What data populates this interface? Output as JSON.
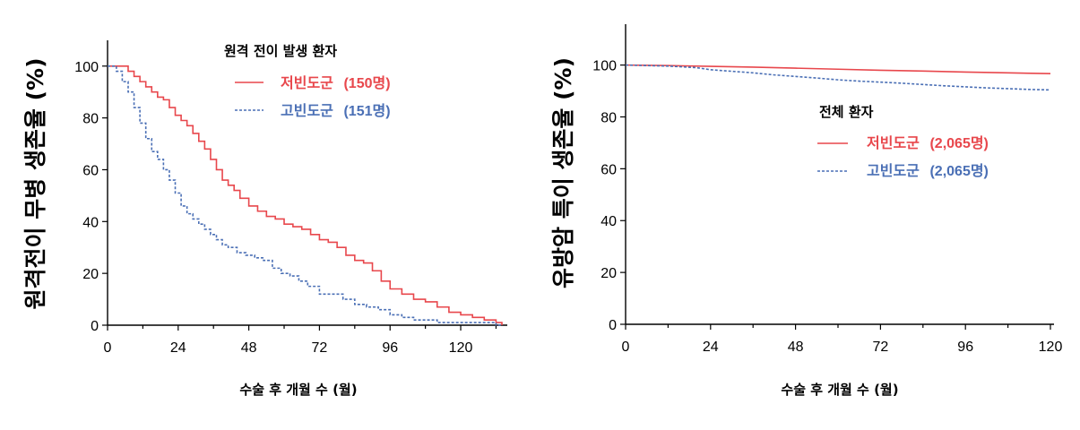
{
  "colors": {
    "low": "#e8474c",
    "high": "#4a6fb5"
  },
  "chart_data": [
    {
      "type": "line",
      "xlabel": "수술 후 개월 수 (월)",
      "ylabel": "원격전이 무병 생존율 (%)",
      "xlim": [
        0,
        138
      ],
      "ylim": [
        0,
        105
      ],
      "xticks": [
        "0",
        "24",
        "48",
        "72",
        "96",
        "120"
      ],
      "yticks": [
        "0",
        "20",
        "40",
        "60",
        "80",
        "100"
      ],
      "legend_title": "원격 전이 발생 환자",
      "legend_position": "top-right",
      "series": [
        {
          "name": "저빈도군",
          "count_label": "(150명)",
          "style": "solid",
          "color_key": "low",
          "x": [
            0,
            4,
            7,
            9,
            11,
            13,
            15,
            17,
            19,
            21,
            23,
            25,
            27,
            29,
            31,
            33,
            35,
            37,
            39,
            41,
            43,
            45,
            48,
            51,
            54,
            57,
            60,
            63,
            66,
            69,
            72,
            75,
            78,
            81,
            84,
            87,
            90,
            93,
            96,
            100,
            104,
            108,
            112,
            116,
            120,
            124,
            128,
            132,
            134
          ],
          "y": [
            100,
            100,
            98,
            96,
            94,
            92,
            90,
            88,
            87,
            84,
            81,
            79,
            77,
            74,
            71,
            68,
            64,
            60,
            56,
            54,
            52,
            49,
            46,
            44,
            42,
            41,
            39,
            38,
            37,
            35,
            33,
            32,
            30,
            27,
            25,
            24,
            21,
            17,
            14,
            12,
            10,
            9,
            7,
            5,
            4,
            3,
            2,
            1,
            0
          ]
        },
        {
          "name": "고빈도군",
          "count_label": "(151명)",
          "style": "dashed",
          "color_key": "high",
          "x": [
            0,
            3,
            5,
            7,
            9,
            11,
            13,
            15,
            17,
            19,
            21,
            23,
            25,
            27,
            29,
            31,
            33,
            35,
            37,
            39,
            41,
            44,
            47,
            50,
            53,
            56,
            59,
            62,
            65,
            68,
            72,
            76,
            80,
            84,
            88,
            92,
            96,
            100,
            104,
            108,
            112,
            116,
            120,
            124,
            128,
            132,
            134
          ],
          "y": [
            100,
            98,
            94,
            90,
            84,
            78,
            72,
            67,
            64,
            60,
            56,
            51,
            46,
            43,
            41,
            39,
            37,
            35,
            33,
            31,
            30,
            28,
            27,
            26,
            25,
            22,
            20,
            19,
            17,
            15,
            12,
            12,
            10,
            8,
            7,
            6,
            4,
            3,
            2,
            2,
            1,
            1,
            1,
            1,
            1,
            0,
            0
          ]
        }
      ]
    },
    {
      "type": "line",
      "xlabel": "수술 후 개월 수 (월)",
      "ylabel": "유방암 특이 생존율 (%)",
      "xlim": [
        0,
        121
      ],
      "ylim": [
        0,
        105
      ],
      "xticks": [
        "0",
        "24",
        "48",
        "72",
        "96",
        "120"
      ],
      "yticks": [
        "0",
        "20",
        "40",
        "60",
        "80",
        "100"
      ],
      "legend_title": "전체 환자",
      "legend_position": "center-right",
      "series": [
        {
          "name": "저빈도군",
          "count_label": "(2,065명)",
          "style": "solid",
          "color_key": "low",
          "x": [
            0,
            12,
            24,
            36,
            48,
            60,
            72,
            84,
            96,
            108,
            120
          ],
          "y": [
            100,
            99.8,
            99.5,
            99.2,
            98.8,
            98.4,
            98.0,
            97.7,
            97.3,
            97.0,
            96.7
          ]
        },
        {
          "name": "고빈도군",
          "count_label": "(2,065명)",
          "style": "dashed",
          "color_key": "high",
          "x": [
            0,
            12,
            20,
            24,
            30,
            36,
            42,
            48,
            54,
            60,
            66,
            72,
            78,
            84,
            90,
            96,
            102,
            108,
            114,
            120
          ],
          "y": [
            100,
            99.6,
            99.0,
            98.2,
            97.6,
            97.0,
            96.2,
            95.6,
            95.0,
            94.3,
            93.8,
            93.4,
            93.0,
            92.5,
            92.0,
            91.6,
            91.2,
            90.9,
            90.6,
            90.4
          ]
        }
      ]
    }
  ]
}
